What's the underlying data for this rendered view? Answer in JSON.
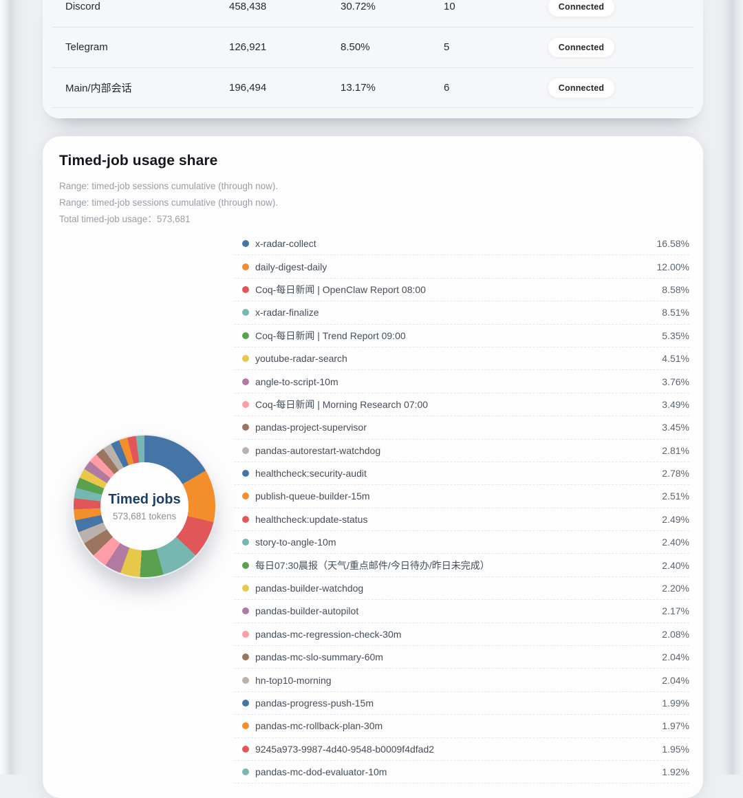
{
  "accounts_table": {
    "rows": [
      {
        "name": "Discord",
        "tokens": "458,438",
        "share": "30.72%",
        "sessions": "10",
        "status": "Connected"
      },
      {
        "name": "Telegram",
        "tokens": "126,921",
        "share": "8.50%",
        "sessions": "5",
        "status": "Connected"
      },
      {
        "name": "Main/内部会话",
        "tokens": "196,494",
        "share": "13.17%",
        "sessions": "6",
        "status": "Connected"
      }
    ]
  },
  "timed_job_card": {
    "title": "Timed-job usage share",
    "subtitle_lines": [
      "Range: timed-job sessions cumulative (through now).",
      "Range: timed-job sessions cumulative (through now).",
      "Total timed-job usage：573,681"
    ],
    "donut_center": {
      "title": "Timed jobs",
      "subtitle": "573,681 tokens"
    }
  },
  "chart_data": {
    "type": "pie",
    "title": "Timed-job usage share",
    "center_label": "Timed jobs",
    "center_sublabel": "573,681 tokens",
    "total_usage": "573,681",
    "start_angle_deg": 0,
    "direction": "clockwise",
    "legend_position": "right",
    "palette": [
      "#4575a7",
      "#f28e2b",
      "#e15759",
      "#76b7b2",
      "#59a14f",
      "#e8c84a",
      "#b07aa1",
      "#ff9da7",
      "#9c755f",
      "#bab0ac"
    ],
    "items": [
      {
        "label": "x-radar-collect",
        "value": 16.58
      },
      {
        "label": "daily-digest-daily",
        "value": 12.0
      },
      {
        "label": "Coq-每日新闻 | OpenClaw Report 08:00",
        "value": 8.58
      },
      {
        "label": "x-radar-finalize",
        "value": 8.51
      },
      {
        "label": "Coq-每日新闻 | Trend Report 09:00",
        "value": 5.35
      },
      {
        "label": "youtube-radar-search",
        "value": 4.51
      },
      {
        "label": "angle-to-script-10m",
        "value": 3.76
      },
      {
        "label": "Coq-每日新闻 | Morning Research 07:00",
        "value": 3.49
      },
      {
        "label": "pandas-project-supervisor",
        "value": 3.45
      },
      {
        "label": "pandas-autorestart-watchdog",
        "value": 2.81
      },
      {
        "label": "healthcheck:security-audit",
        "value": 2.78
      },
      {
        "label": "publish-queue-builder-15m",
        "value": 2.51
      },
      {
        "label": "healthcheck:update-status",
        "value": 2.49
      },
      {
        "label": "story-to-angle-10m",
        "value": 2.4
      },
      {
        "label": "每日07:30晨报（天气/重点邮件/今日待办/昨日未完成）",
        "value": 2.4
      },
      {
        "label": "pandas-builder-watchdog",
        "value": 2.2
      },
      {
        "label": "pandas-builder-autopilot",
        "value": 2.17
      },
      {
        "label": "pandas-mc-regression-check-30m",
        "value": 2.08
      },
      {
        "label": "pandas-mc-slo-summary-60m",
        "value": 2.04
      },
      {
        "label": "hn-top10-morning",
        "value": 2.04
      },
      {
        "label": "pandas-progress-push-15m",
        "value": 1.99
      },
      {
        "label": "pandas-mc-rollback-plan-30m",
        "value": 1.97
      },
      {
        "label": "9245a973-9987-4d40-9548-b0009f4dfad2",
        "value": 1.95
      },
      {
        "label": "pandas-mc-dod-evaluator-10m",
        "value": 1.92
      }
    ]
  }
}
